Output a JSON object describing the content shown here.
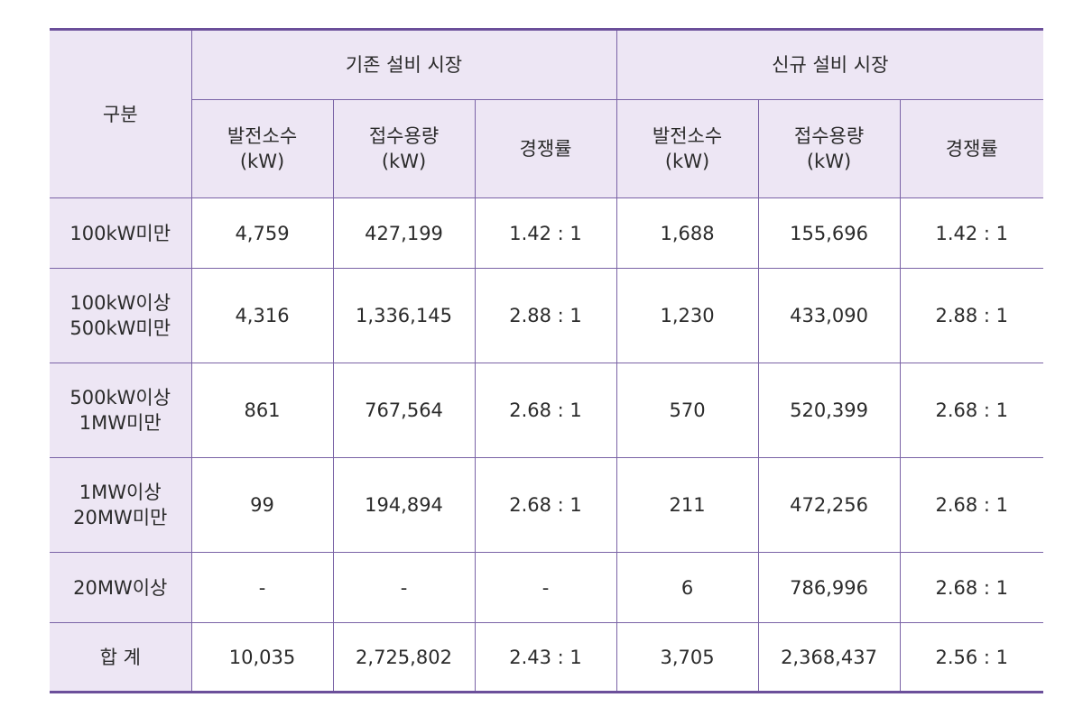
{
  "header": {
    "category": "구분",
    "existing_market": "기존 설비 시장",
    "new_market": "신규 설비 시장",
    "columns": [
      {
        "line1": "발전소수",
        "line2": "(kW)"
      },
      {
        "line1": "접수용량",
        "line2": "(kW)"
      },
      {
        "line1": "경쟁률"
      },
      {
        "line1": "발전소수",
        "line2": "(kW)"
      },
      {
        "line1": "접수용량",
        "line2": "(kW)"
      },
      {
        "line1": "경쟁률"
      }
    ]
  },
  "rows": [
    {
      "label": [
        "100kW미만"
      ],
      "cells": [
        "4,759",
        "427,199",
        "1.42 : 1",
        "1,688",
        "155,696",
        "1.42 : 1"
      ]
    },
    {
      "label": [
        "100kW이상",
        "500kW미만"
      ],
      "cells": [
        "4,316",
        "1,336,145",
        "2.88 : 1",
        "1,230",
        "433,090",
        "2.88 : 1"
      ]
    },
    {
      "label": [
        "500kW이상",
        "1MW미만"
      ],
      "cells": [
        "861",
        "767,564",
        "2.68 : 1",
        "570",
        "520,399",
        "2.68 : 1"
      ]
    },
    {
      "label": [
        "1MW이상",
        "20MW미만"
      ],
      "cells": [
        "99",
        "194,894",
        "2.68 : 1",
        "211",
        "472,256",
        "2.68 : 1"
      ]
    },
    {
      "label": [
        "20MW이상"
      ],
      "cells": [
        "-",
        "-",
        "-",
        "6",
        "786,996",
        "2.68 : 1"
      ]
    },
    {
      "label": [
        "합 계"
      ],
      "cells": [
        "10,035",
        "2,725,802",
        "2.43 : 1",
        "3,705",
        "2,368,437",
        "2.56 : 1"
      ]
    }
  ],
  "colors": {
    "header_bg": "#ede6f4",
    "border": "#7a63a6",
    "rule": "#6b4f9a"
  }
}
